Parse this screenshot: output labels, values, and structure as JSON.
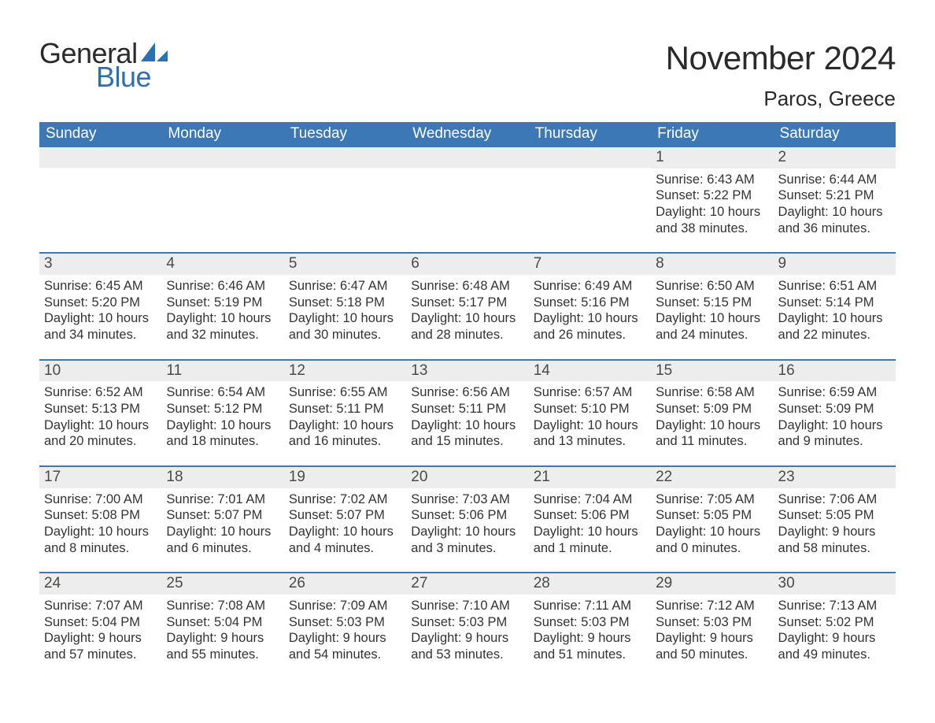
{
  "brand": {
    "word1": "General",
    "word2": "Blue",
    "word1_color": "#2a2a2a",
    "word2_color": "#2f6fae",
    "shape_color": "#2f6fae"
  },
  "title": {
    "month": "November 2024",
    "location": "Paros, Greece"
  },
  "colors": {
    "header_bg": "#3b78b5",
    "header_text": "#ffffff",
    "row_divider": "#3b78b5",
    "daynum_bg": "#ededed",
    "daynum_text": "#4a4a4a",
    "body_text": "#333333",
    "page_bg": "#ffffff"
  },
  "typography": {
    "title_fontsize": 42,
    "location_fontsize": 26,
    "weekday_fontsize": 19,
    "daynum_fontsize": 19,
    "body_fontsize": 16.5,
    "font_family": "Arial"
  },
  "layout": {
    "columns": 7,
    "rows": 5,
    "leading_blanks": 5
  },
  "weekdays": [
    "Sunday",
    "Monday",
    "Tuesday",
    "Wednesday",
    "Thursday",
    "Friday",
    "Saturday"
  ],
  "days": [
    {
      "n": "1",
      "sunrise": "Sunrise: 6:43 AM",
      "sunset": "Sunset: 5:22 PM",
      "daylight1": "Daylight: 10 hours",
      "daylight2": "and 38 minutes."
    },
    {
      "n": "2",
      "sunrise": "Sunrise: 6:44 AM",
      "sunset": "Sunset: 5:21 PM",
      "daylight1": "Daylight: 10 hours",
      "daylight2": "and 36 minutes."
    },
    {
      "n": "3",
      "sunrise": "Sunrise: 6:45 AM",
      "sunset": "Sunset: 5:20 PM",
      "daylight1": "Daylight: 10 hours",
      "daylight2": "and 34 minutes."
    },
    {
      "n": "4",
      "sunrise": "Sunrise: 6:46 AM",
      "sunset": "Sunset: 5:19 PM",
      "daylight1": "Daylight: 10 hours",
      "daylight2": "and 32 minutes."
    },
    {
      "n": "5",
      "sunrise": "Sunrise: 6:47 AM",
      "sunset": "Sunset: 5:18 PM",
      "daylight1": "Daylight: 10 hours",
      "daylight2": "and 30 minutes."
    },
    {
      "n": "6",
      "sunrise": "Sunrise: 6:48 AM",
      "sunset": "Sunset: 5:17 PM",
      "daylight1": "Daylight: 10 hours",
      "daylight2": "and 28 minutes."
    },
    {
      "n": "7",
      "sunrise": "Sunrise: 6:49 AM",
      "sunset": "Sunset: 5:16 PM",
      "daylight1": "Daylight: 10 hours",
      "daylight2": "and 26 minutes."
    },
    {
      "n": "8",
      "sunrise": "Sunrise: 6:50 AM",
      "sunset": "Sunset: 5:15 PM",
      "daylight1": "Daylight: 10 hours",
      "daylight2": "and 24 minutes."
    },
    {
      "n": "9",
      "sunrise": "Sunrise: 6:51 AM",
      "sunset": "Sunset: 5:14 PM",
      "daylight1": "Daylight: 10 hours",
      "daylight2": "and 22 minutes."
    },
    {
      "n": "10",
      "sunrise": "Sunrise: 6:52 AM",
      "sunset": "Sunset: 5:13 PM",
      "daylight1": "Daylight: 10 hours",
      "daylight2": "and 20 minutes."
    },
    {
      "n": "11",
      "sunrise": "Sunrise: 6:54 AM",
      "sunset": "Sunset: 5:12 PM",
      "daylight1": "Daylight: 10 hours",
      "daylight2": "and 18 minutes."
    },
    {
      "n": "12",
      "sunrise": "Sunrise: 6:55 AM",
      "sunset": "Sunset: 5:11 PM",
      "daylight1": "Daylight: 10 hours",
      "daylight2": "and 16 minutes."
    },
    {
      "n": "13",
      "sunrise": "Sunrise: 6:56 AM",
      "sunset": "Sunset: 5:11 PM",
      "daylight1": "Daylight: 10 hours",
      "daylight2": "and 15 minutes."
    },
    {
      "n": "14",
      "sunrise": "Sunrise: 6:57 AM",
      "sunset": "Sunset: 5:10 PM",
      "daylight1": "Daylight: 10 hours",
      "daylight2": "and 13 minutes."
    },
    {
      "n": "15",
      "sunrise": "Sunrise: 6:58 AM",
      "sunset": "Sunset: 5:09 PM",
      "daylight1": "Daylight: 10 hours",
      "daylight2": "and 11 minutes."
    },
    {
      "n": "16",
      "sunrise": "Sunrise: 6:59 AM",
      "sunset": "Sunset: 5:09 PM",
      "daylight1": "Daylight: 10 hours",
      "daylight2": "and 9 minutes."
    },
    {
      "n": "17",
      "sunrise": "Sunrise: 7:00 AM",
      "sunset": "Sunset: 5:08 PM",
      "daylight1": "Daylight: 10 hours",
      "daylight2": "and 8 minutes."
    },
    {
      "n": "18",
      "sunrise": "Sunrise: 7:01 AM",
      "sunset": "Sunset: 5:07 PM",
      "daylight1": "Daylight: 10 hours",
      "daylight2": "and 6 minutes."
    },
    {
      "n": "19",
      "sunrise": "Sunrise: 7:02 AM",
      "sunset": "Sunset: 5:07 PM",
      "daylight1": "Daylight: 10 hours",
      "daylight2": "and 4 minutes."
    },
    {
      "n": "20",
      "sunrise": "Sunrise: 7:03 AM",
      "sunset": "Sunset: 5:06 PM",
      "daylight1": "Daylight: 10 hours",
      "daylight2": "and 3 minutes."
    },
    {
      "n": "21",
      "sunrise": "Sunrise: 7:04 AM",
      "sunset": "Sunset: 5:06 PM",
      "daylight1": "Daylight: 10 hours",
      "daylight2": "and 1 minute."
    },
    {
      "n": "22",
      "sunrise": "Sunrise: 7:05 AM",
      "sunset": "Sunset: 5:05 PM",
      "daylight1": "Daylight: 10 hours",
      "daylight2": "and 0 minutes."
    },
    {
      "n": "23",
      "sunrise": "Sunrise: 7:06 AM",
      "sunset": "Sunset: 5:05 PM",
      "daylight1": "Daylight: 9 hours",
      "daylight2": "and 58 minutes."
    },
    {
      "n": "24",
      "sunrise": "Sunrise: 7:07 AM",
      "sunset": "Sunset: 5:04 PM",
      "daylight1": "Daylight: 9 hours",
      "daylight2": "and 57 minutes."
    },
    {
      "n": "25",
      "sunrise": "Sunrise: 7:08 AM",
      "sunset": "Sunset: 5:04 PM",
      "daylight1": "Daylight: 9 hours",
      "daylight2": "and 55 minutes."
    },
    {
      "n": "26",
      "sunrise": "Sunrise: 7:09 AM",
      "sunset": "Sunset: 5:03 PM",
      "daylight1": "Daylight: 9 hours",
      "daylight2": "and 54 minutes."
    },
    {
      "n": "27",
      "sunrise": "Sunrise: 7:10 AM",
      "sunset": "Sunset: 5:03 PM",
      "daylight1": "Daylight: 9 hours",
      "daylight2": "and 53 minutes."
    },
    {
      "n": "28",
      "sunrise": "Sunrise: 7:11 AM",
      "sunset": "Sunset: 5:03 PM",
      "daylight1": "Daylight: 9 hours",
      "daylight2": "and 51 minutes."
    },
    {
      "n": "29",
      "sunrise": "Sunrise: 7:12 AM",
      "sunset": "Sunset: 5:03 PM",
      "daylight1": "Daylight: 9 hours",
      "daylight2": "and 50 minutes."
    },
    {
      "n": "30",
      "sunrise": "Sunrise: 7:13 AM",
      "sunset": "Sunset: 5:02 PM",
      "daylight1": "Daylight: 9 hours",
      "daylight2": "and 49 minutes."
    }
  ]
}
